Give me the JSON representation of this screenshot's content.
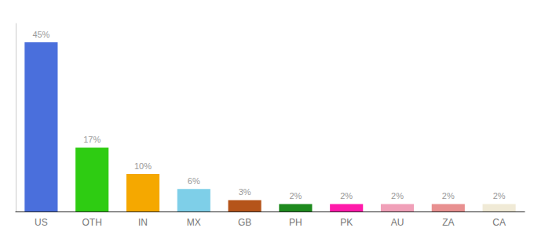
{
  "chart_data": {
    "type": "bar",
    "categories": [
      "US",
      "OTH",
      "IN",
      "MX",
      "GB",
      "PH",
      "PK",
      "AU",
      "ZA",
      "CA"
    ],
    "values": [
      45,
      17,
      10,
      6,
      3,
      2,
      2,
      2,
      2,
      2
    ],
    "value_labels": [
      "45%",
      "17%",
      "10%",
      "6%",
      "3%",
      "2%",
      "2%",
      "2%",
      "2%",
      "2%"
    ],
    "colors": [
      "#4a6fdc",
      "#2ecc12",
      "#f5a800",
      "#7ecfe8",
      "#b5541a",
      "#1e8a1e",
      "#ff1aaa",
      "#f0a0b8",
      "#e89090",
      "#f0ead6"
    ],
    "ylim": [
      0,
      50
    ],
    "grid": false,
    "data_labels": true,
    "tick_labels": "x"
  }
}
